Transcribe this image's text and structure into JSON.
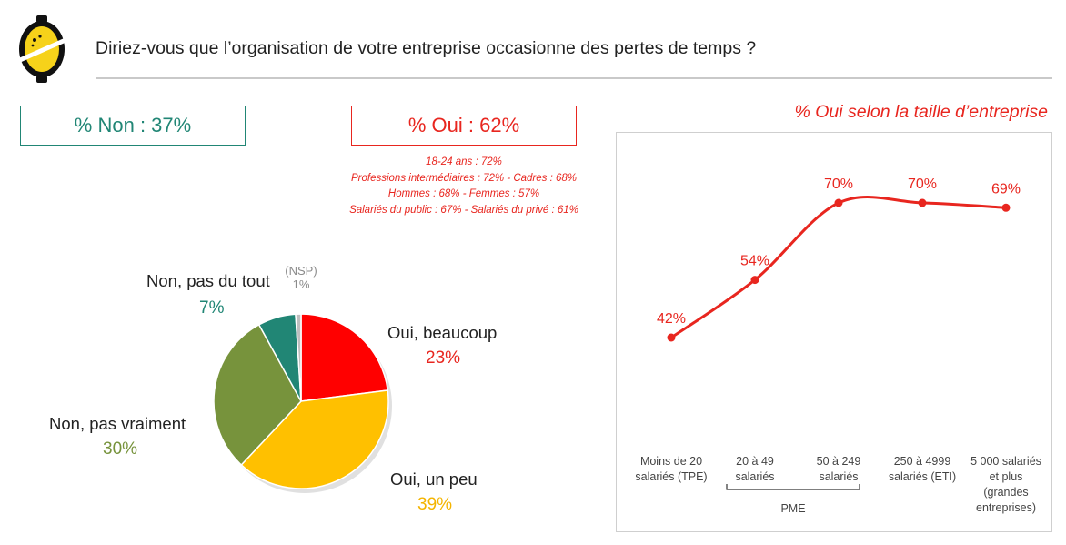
{
  "header": {
    "title": "Diriez-vous que l’organisation de votre entreprise occasionne des pertes de temps ?"
  },
  "summary": {
    "non_label": "% Non : 37%",
    "oui_label": "% Oui : 62%",
    "details": [
      "18-24 ans : 72%",
      "Professions intermédiaires : 72% - Cadres : 68%",
      "Hommes : 68% - Femmes : 57%",
      "Salariés du public : 67% - Salariés du privé : 61%"
    ]
  },
  "colors": {
    "oui_beaucoup": "#ff0000",
    "oui_un_peu": "#ffc000",
    "non_pas_vraiment": "#77933c",
    "non_pas_du_tout": "#218675",
    "nsp": "#bfbfbf",
    "red_text": "#e8261f",
    "green_text": "#218675",
    "olive_text": "#77933c",
    "yellow_text": "#f4b400"
  },
  "chart_data": [
    {
      "type": "pie",
      "slices": [
        {
          "label": "Oui, beaucoup",
          "value": 23,
          "display": "23%"
        },
        {
          "label": "Oui, un peu",
          "value": 39,
          "display": "39%"
        },
        {
          "label": "Non, pas vraiment",
          "value": 30,
          "display": "30%"
        },
        {
          "label": "Non, pas du tout",
          "value": 7,
          "display": "7%"
        },
        {
          "label": "(NSP)",
          "value": 1,
          "display": "1%"
        }
      ]
    },
    {
      "type": "line",
      "title": "% Oui selon la taille d’entreprise",
      "categories": [
        [
          "Moins de 20",
          "salariés (TPE)"
        ],
        [
          "20 à 49",
          "salariés"
        ],
        [
          "50 à 249",
          "salariés"
        ],
        [
          "250 à 4999",
          "salariés (ETI)"
        ],
        [
          "5 000 salariés",
          "et plus",
          "(grandes",
          "entreprises)"
        ]
      ],
      "values": [
        42,
        54,
        70,
        70,
        69
      ],
      "value_labels": [
        "42%",
        "54%",
        "70%",
        "70%",
        "69%"
      ],
      "group_label": "PME",
      "group_span": [
        1,
        2
      ]
    }
  ]
}
